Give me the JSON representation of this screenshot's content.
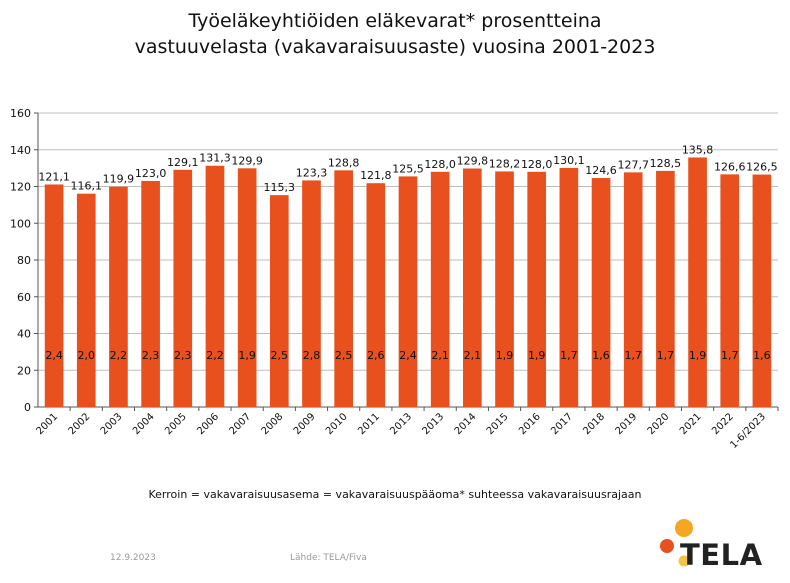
{
  "chart_data": {
    "type": "bar",
    "title_lines": [
      "Työeläkeyhtiöiden eläkevarat* prosentteina",
      "vastuuvelasta (vakavaraisuusaste) vuosina 2001-2023"
    ],
    "categories": [
      "2001",
      "2002",
      "2003",
      "2004",
      "2005",
      "2006",
      "2007",
      "2008",
      "2009",
      "2010",
      "2011",
      "2013",
      "2013",
      "2014",
      "2015",
      "2016",
      "2017",
      "2018",
      "2019",
      "2020",
      "2021",
      "2022",
      "1-6/2023"
    ],
    "value_labels": [
      "121,1",
      "116,1",
      "119,9",
      "123,0",
      "129,1",
      "131,3",
      "129,9",
      "115,3",
      "123,3",
      "128,8",
      "121,8",
      "125,5",
      "128,0",
      "129,8",
      "128,2",
      "128,0",
      "130,1",
      "124,6",
      "127,7",
      "128,5",
      "135,8",
      "126,6",
      "126,5"
    ],
    "values": [
      121.1,
      116.1,
      119.9,
      123.0,
      129.1,
      131.3,
      129.9,
      115.3,
      123.3,
      128.8,
      121.8,
      125.5,
      128.0,
      129.8,
      128.2,
      128.0,
      130.1,
      124.6,
      127.7,
      128.5,
      135.8,
      126.6,
      126.5
    ],
    "multiplier_labels": [
      "2,4",
      "2,0",
      "2,2",
      "2,3",
      "2,3",
      "2,2",
      "1,9",
      "2,5",
      "2,8",
      "2,5",
      "2,6",
      "2,4",
      "2,1",
      "2,1",
      "1,9",
      "1,9",
      "1,7",
      "1,6",
      "1,7",
      "1,7",
      "1,9",
      "1,7",
      "1,6"
    ],
    "ylim": [
      0,
      160
    ],
    "yticks": [
      "0",
      "20",
      "40",
      "60",
      "80",
      "100",
      "120",
      "140",
      "160"
    ],
    "grid": true,
    "bar_color": "#e8501e",
    "xlabel": "",
    "ylabel": ""
  },
  "footnote": "Kerroin = vakavaraisuusasema = vakavaraisuuspääoma* suhteessa vakavaraisuusrajaan",
  "date": "12.9.2023",
  "source": "Lähde: TELA/Fiva",
  "logo": {
    "text": "TELA",
    "colors": [
      "#f5a623",
      "#e8501e",
      "#f4c542"
    ]
  }
}
